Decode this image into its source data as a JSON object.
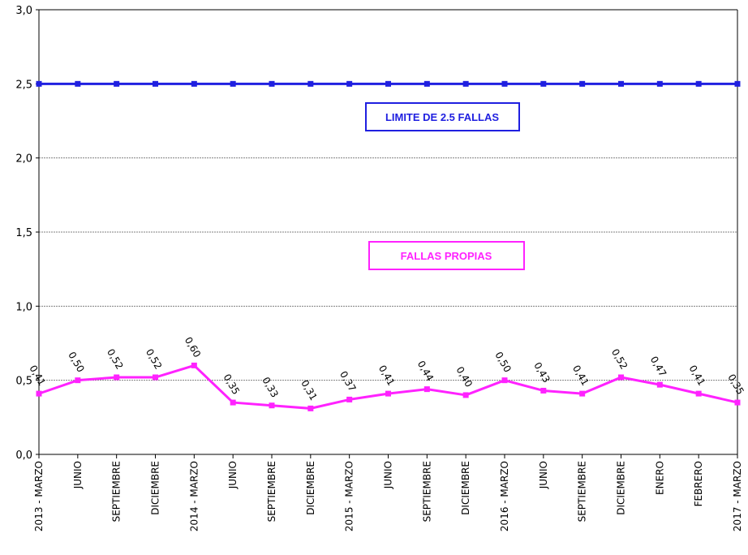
{
  "chart_data": {
    "type": "line",
    "title": "",
    "xlabel": "",
    "ylabel": "",
    "ylim": [
      0,
      3
    ],
    "y_ticks": [
      "0,0",
      "0,5",
      "1,0",
      "1,5",
      "2,0",
      "2,5",
      "3,0"
    ],
    "grid": true,
    "categories": [
      "2013 - MARZO",
      "JUNIO",
      "SEPTIEMBRE",
      "DICIEMBRE",
      "2014 - MARZO",
      "JUNIO",
      "SEPTIEMBRE",
      "DICIEMBRE",
      "2015 - MARZO",
      "JUNIO",
      "SEPTIEMBRE",
      "DICIEMBRE",
      "2016 - MARZO",
      "JUNIO",
      "SEPTIEMBRE",
      "DICIEMBRE",
      "ENERO",
      "FEBRERO",
      "2017 - MARZO"
    ],
    "series": [
      {
        "name": "LIMITE DE 2.5 FALLAS",
        "color": "#1f1fe0",
        "values": [
          2.5,
          2.5,
          2.5,
          2.5,
          2.5,
          2.5,
          2.5,
          2.5,
          2.5,
          2.5,
          2.5,
          2.5,
          2.5,
          2.5,
          2.5,
          2.5,
          2.5,
          2.5,
          2.5
        ]
      },
      {
        "name": "FALLAS PROPIAS",
        "color": "#ff22ff",
        "values": [
          0.41,
          0.5,
          0.52,
          0.52,
          0.6,
          0.35,
          0.33,
          0.31,
          0.37,
          0.41,
          0.44,
          0.4,
          0.5,
          0.43,
          0.41,
          0.52,
          0.47,
          0.41,
          0.35
        ],
        "labels": [
          "0,41",
          "0,50",
          "0,52",
          "0,52",
          "0,60",
          "0,35",
          "0,33",
          "0,31",
          "0,37",
          "0,41",
          "0,44",
          "0,40",
          "0,50",
          "0,43",
          "0,41",
          "0,52",
          "0,47",
          "0,41",
          "0,35"
        ]
      }
    ],
    "legend": {
      "limit_label": "LIMITE DE 2.5 FALLAS",
      "own_label": "FALLAS PROPIAS"
    }
  }
}
